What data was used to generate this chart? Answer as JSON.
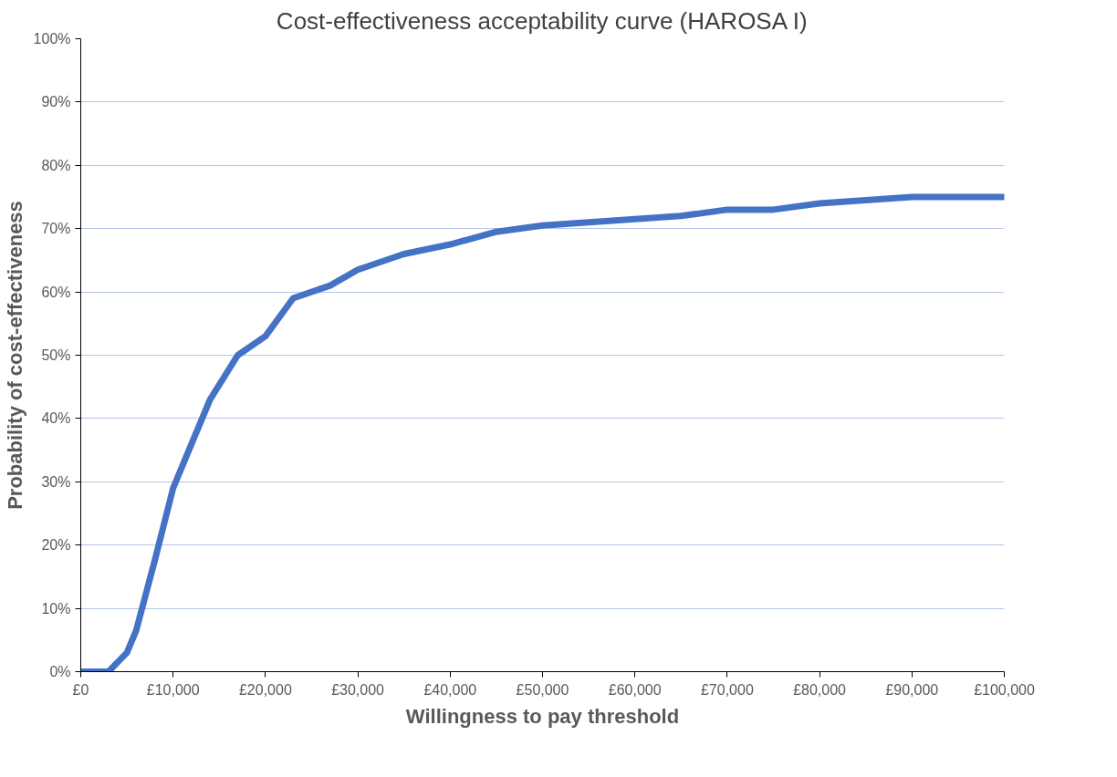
{
  "chart_data": {
    "type": "line",
    "title": "Cost-effectiveness acceptability curve (HAROSA I)",
    "xlabel": "Willingness to pay threshold",
    "ylabel": "Probability of cost-effectiveness",
    "x": [
      0,
      3000,
      5000,
      6000,
      7000,
      8000,
      10000,
      12000,
      14000,
      17000,
      20000,
      23000,
      27000,
      30000,
      35000,
      40000,
      45000,
      50000,
      55000,
      60000,
      65000,
      70000,
      75000,
      80000,
      85000,
      90000,
      100000
    ],
    "series": [
      {
        "color": "#4472c4",
        "values": [
          0,
          0,
          3,
          6.5,
          12,
          17.5,
          29,
          36,
          43,
          50,
          53,
          59,
          61,
          63.5,
          66,
          67.5,
          69.5,
          70.5,
          71,
          71.5,
          72,
          73,
          73,
          74,
          74.5,
          75,
          75
        ]
      }
    ],
    "xlim": [
      0,
      100000
    ],
    "ylim": [
      0,
      100
    ],
    "xticks": [
      {
        "value": 0,
        "label": "£0"
      },
      {
        "value": 10000,
        "label": "£10,000"
      },
      {
        "value": 20000,
        "label": "£20,000"
      },
      {
        "value": 30000,
        "label": "£30,000"
      },
      {
        "value": 40000,
        "label": "£40,000"
      },
      {
        "value": 50000,
        "label": "£50,000"
      },
      {
        "value": 60000,
        "label": "£60,000"
      },
      {
        "value": 70000,
        "label": "£70,000"
      },
      {
        "value": 80000,
        "label": "£80,000"
      },
      {
        "value": 90000,
        "label": "£90,000"
      },
      {
        "value": 100000,
        "label": "£100,000"
      }
    ],
    "yticks": [
      {
        "value": 0,
        "label": "0%"
      },
      {
        "value": 10,
        "label": "10%"
      },
      {
        "value": 20,
        "label": "20%"
      },
      {
        "value": 30,
        "label": "30%"
      },
      {
        "value": 40,
        "label": "40%"
      },
      {
        "value": 50,
        "label": "50%"
      },
      {
        "value": 60,
        "label": "60%"
      },
      {
        "value": 70,
        "label": "70%"
      },
      {
        "value": 80,
        "label": "80%"
      },
      {
        "value": 90,
        "label": "90%"
      },
      {
        "value": 100,
        "label": "100%"
      }
    ],
    "grid": "y",
    "marker": "none",
    "line_style": "solid"
  }
}
